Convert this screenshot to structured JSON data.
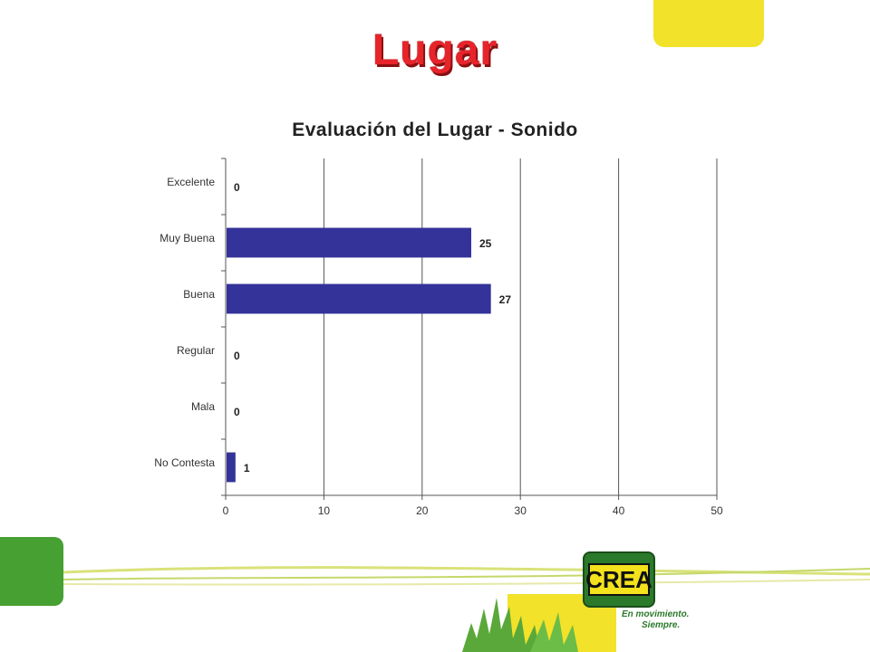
{
  "slide": {
    "title": "Lugar"
  },
  "logo": {
    "text": "CREA",
    "tagline_line1": "En movimiento.",
    "tagline_line2": "Siempre."
  },
  "colors": {
    "bar": "#333399",
    "title": "#e8242b",
    "yellow_accent": "#f2e22a",
    "green_accent": "#46a032"
  },
  "chart_data": {
    "type": "bar",
    "orientation": "horizontal",
    "title": "Evaluación del Lugar - Sonido",
    "categories": [
      "Excelente",
      "Muy Buena",
      "Buena",
      "Regular",
      "Mala",
      "No Contesta"
    ],
    "values": [
      0,
      25,
      27,
      0,
      0,
      1
    ],
    "xlim": [
      0,
      50
    ],
    "xticks": [
      0,
      10,
      20,
      30,
      40,
      50
    ],
    "xlabel": "",
    "ylabel": "",
    "grid": true,
    "legend": "none"
  }
}
